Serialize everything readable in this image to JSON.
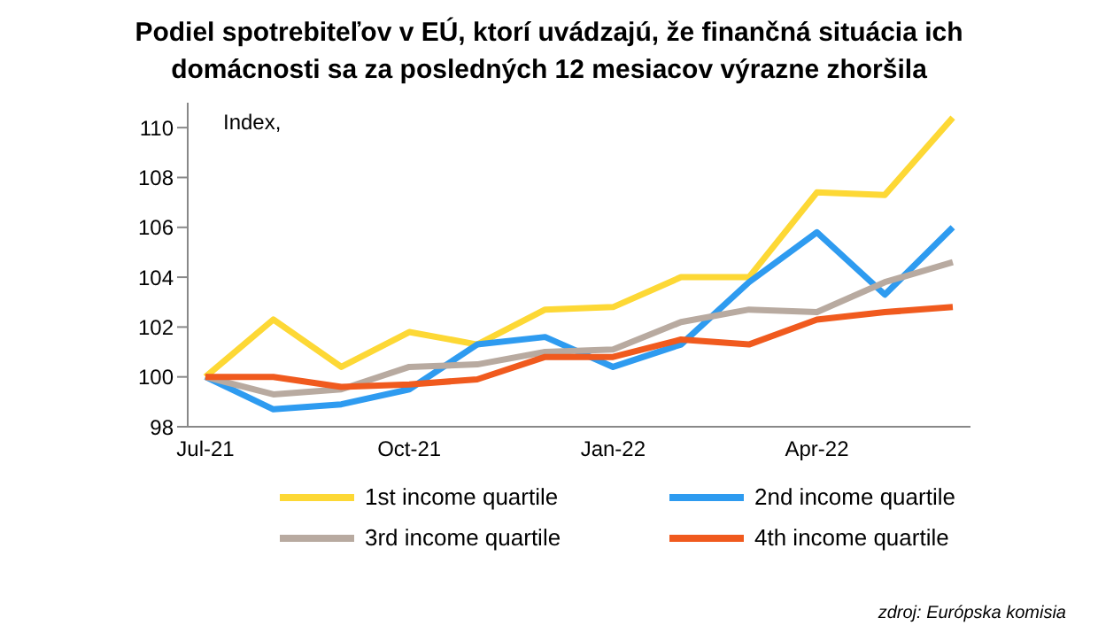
{
  "chart_data": {
    "type": "line",
    "title": "Podiel spotrebiteľov v EÚ, ktorí uvádzajú, že finančná situácia ich domácnosti sa za posledných 12 mesiacov výrazne zhoršila",
    "ylabel": "Index,",
    "annotations": [
      "zdroj: Európska komisia"
    ],
    "categories": [
      "Jul-21",
      null,
      null,
      "Oct-21",
      null,
      null,
      "Jan-22",
      null,
      null,
      "Apr-22",
      null,
      null
    ],
    "series": [
      {
        "name": "1st income quartile",
        "color": "#fdd835",
        "values": [
          100.0,
          102.3,
          100.4,
          101.8,
          101.3,
          102.7,
          102.8,
          104.0,
          104.0,
          107.4,
          107.3,
          110.4
        ]
      },
      {
        "name": "2nd income quartile",
        "color": "#2e9bf0",
        "values": [
          100.0,
          98.7,
          98.9,
          99.5,
          101.3,
          101.6,
          100.4,
          101.3,
          103.8,
          105.8,
          103.3,
          106.0
        ]
      },
      {
        "name": "3rd income quartile",
        "color": "#b8aaa0",
        "values": [
          100.0,
          99.3,
          99.5,
          100.4,
          100.5,
          101.0,
          101.1,
          102.2,
          102.7,
          102.6,
          103.8,
          104.6
        ]
      },
      {
        "name": "4th income quartile",
        "color": "#f05a1e",
        "values": [
          100.0,
          100.0,
          99.6,
          99.7,
          99.9,
          100.8,
          100.8,
          101.5,
          101.3,
          102.3,
          102.6,
          102.8
        ]
      }
    ],
    "ylim": [
      98,
      111
    ],
    "yticks": [
      98,
      100,
      102,
      104,
      106,
      108,
      110
    ],
    "grid": false,
    "legend": "bottom",
    "marker": "none",
    "line_style": "solid"
  }
}
